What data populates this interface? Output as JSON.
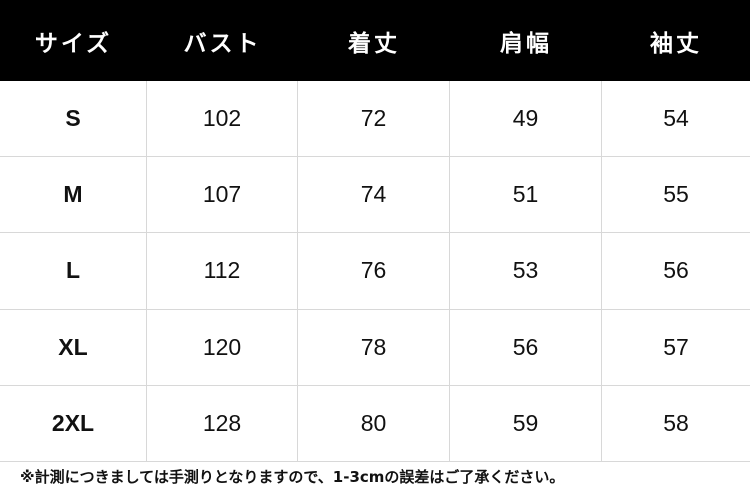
{
  "table": {
    "headers": [
      "サイズ",
      "バスト",
      "着丈",
      "肩幅",
      "袖丈"
    ],
    "rows": [
      [
        "S",
        "102",
        "72",
        "49",
        "54"
      ],
      [
        "M",
        "107",
        "74",
        "51",
        "55"
      ],
      [
        "L",
        "112",
        "76",
        "53",
        "56"
      ],
      [
        "XL",
        "120",
        "78",
        "56",
        "57"
      ],
      [
        "2XL",
        "128",
        "80",
        "59",
        "58"
      ]
    ]
  },
  "note": "※計測につきましては手測りとなりますので、1-3cmの誤差はご了承ください。",
  "colors": {
    "header_bg": "#000000",
    "header_text": "#ffffff",
    "grid_line": "#d8d8d8"
  }
}
